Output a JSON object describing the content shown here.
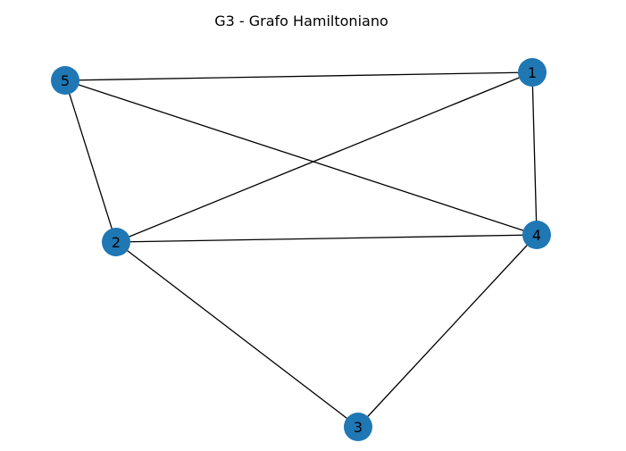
{
  "title": "G3 - Grafo Hamiltoniano",
  "colors": {
    "node_fill": "#1f77b4",
    "edge": "#000000",
    "label": "#000000"
  },
  "graph": {
    "nodes": [
      {
        "id": "1",
        "label": "1"
      },
      {
        "id": "2",
        "label": "2"
      },
      {
        "id": "3",
        "label": "3"
      },
      {
        "id": "4",
        "label": "4"
      },
      {
        "id": "5",
        "label": "5"
      }
    ],
    "edges": [
      [
        "5",
        "1"
      ],
      [
        "5",
        "4"
      ],
      [
        "5",
        "2"
      ],
      [
        "1",
        "2"
      ],
      [
        "1",
        "4"
      ],
      [
        "2",
        "4"
      ],
      [
        "2",
        "3"
      ],
      [
        "4",
        "3"
      ]
    ]
  }
}
